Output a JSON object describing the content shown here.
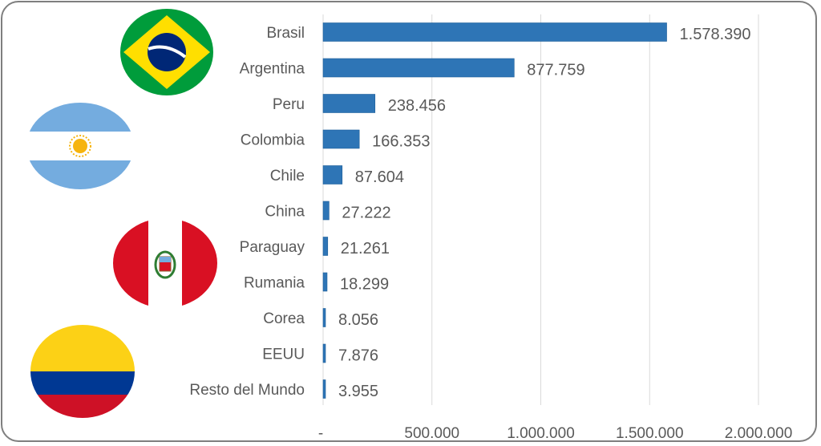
{
  "chart_data": {
    "type": "bar",
    "orientation": "horizontal",
    "categories": [
      "Brasil",
      "Argentina",
      "Peru",
      "Colombia",
      "Chile",
      "China",
      "Paraguay",
      "Rumania",
      "Corea",
      "EEUU",
      "Resto del Mundo"
    ],
    "values": [
      1578390,
      877759,
      238456,
      166353,
      87604,
      27222,
      21261,
      18299,
      8056,
      7876,
      3955
    ],
    "value_labels": [
      "1.578.390",
      "877.759",
      "238.456",
      "166.353",
      "87.604",
      "27.222",
      "21.261",
      "18.299",
      "8.056",
      "7.876",
      "3.955"
    ],
    "xlim": [
      0,
      2000000
    ],
    "x_ticks": [
      0,
      500000,
      1000000,
      1500000,
      2000000
    ],
    "x_tick_labels": [
      "-",
      "500.000",
      "1.000.000",
      "1.500.000",
      "2.000.000"
    ],
    "grid": true,
    "bar_color": "#2e75b6",
    "title": "",
    "xlabel": "",
    "ylabel": ""
  },
  "flags": [
    {
      "icon": "brazil-flag-icon",
      "colors": [
        "#009c3b",
        "#ffdf00",
        "#002776"
      ]
    },
    {
      "icon": "argentina-flag-icon",
      "colors": [
        "#74acdf",
        "#ffffff",
        "#f6b40e"
      ]
    },
    {
      "icon": "peru-flag-icon",
      "colors": [
        "#d91023",
        "#ffffff"
      ]
    },
    {
      "icon": "colombia-flag-icon",
      "colors": [
        "#fcd116",
        "#003893",
        "#ce1126"
      ]
    }
  ]
}
